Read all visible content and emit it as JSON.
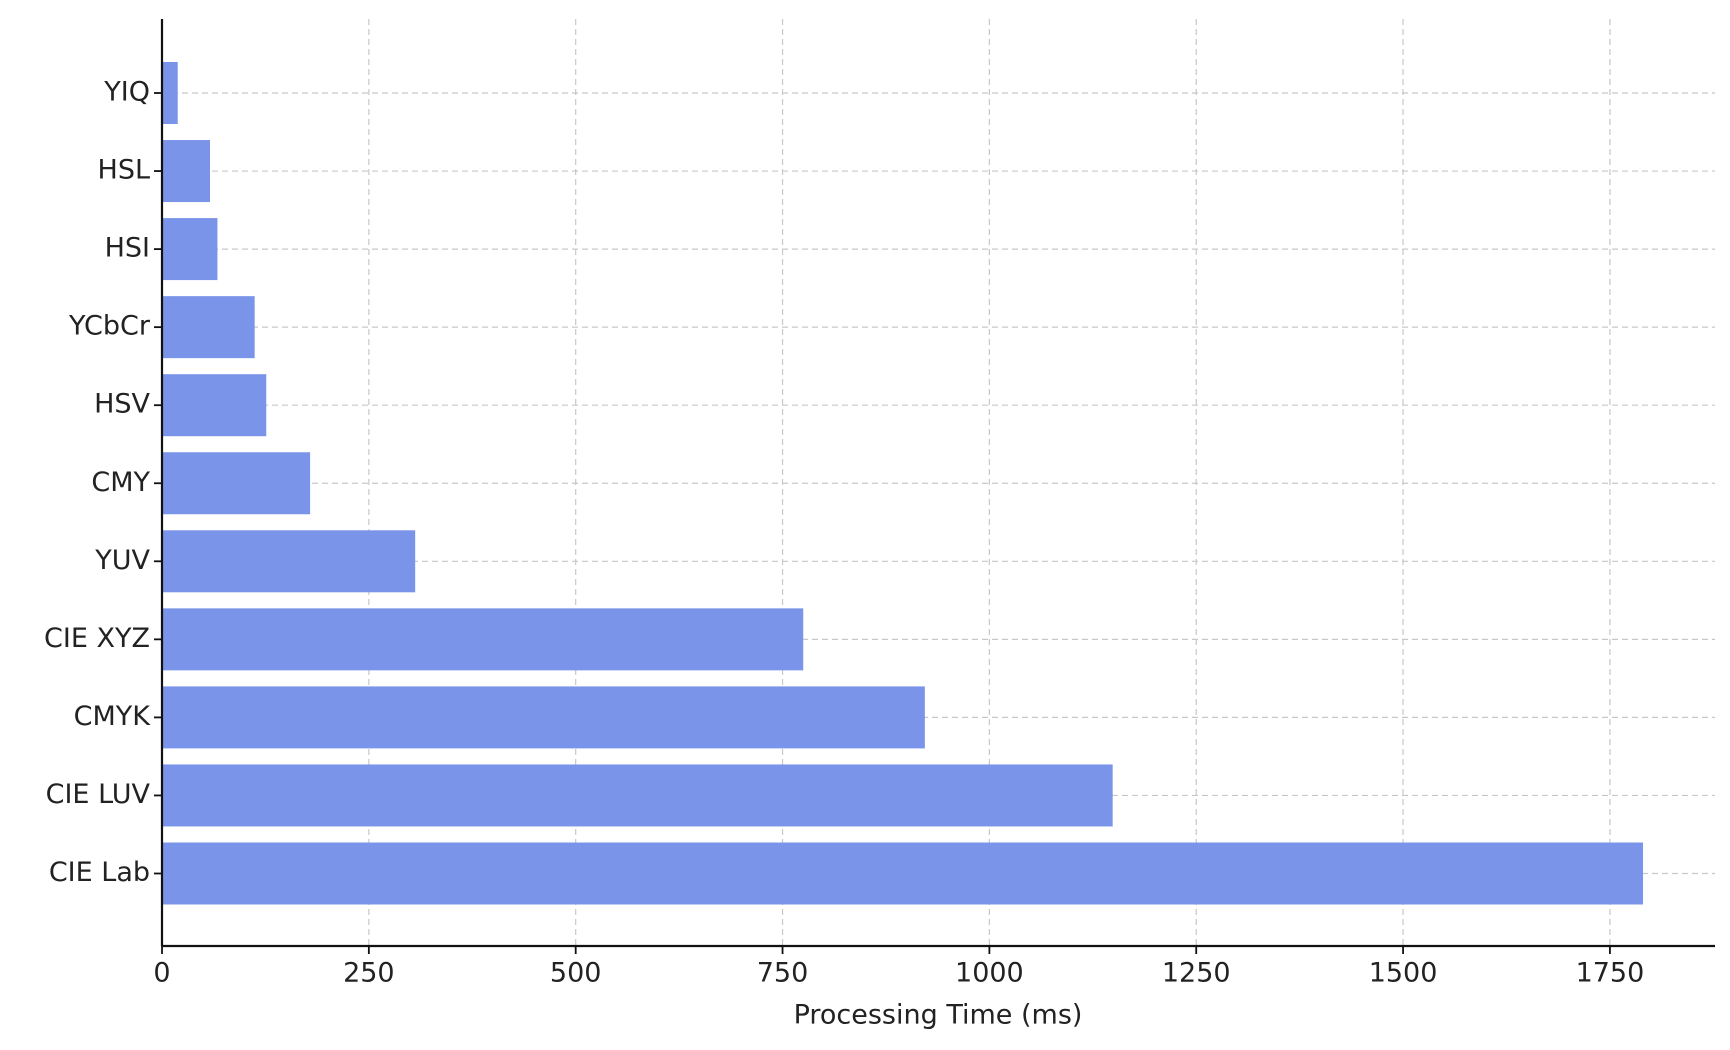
{
  "chart_data": {
    "type": "barh",
    "xlabel": "Processing Time (ms)",
    "categories": [
      "YIQ",
      "HSL",
      "HSI",
      "YCbCr",
      "HSV",
      "CMY",
      "YUV",
      "CIE XYZ",
      "CMYK",
      "CIE LUV",
      "CIE Lab"
    ],
    "values": [
      19,
      58,
      67,
      112,
      126,
      179,
      306,
      775,
      922,
      1149,
      1790
    ],
    "color": "#7994e8",
    "xlim": [
      0,
      1877
    ],
    "xticks": [
      0,
      250,
      500,
      750,
      1000,
      1250,
      1500,
      1750
    ],
    "grid": true
  }
}
